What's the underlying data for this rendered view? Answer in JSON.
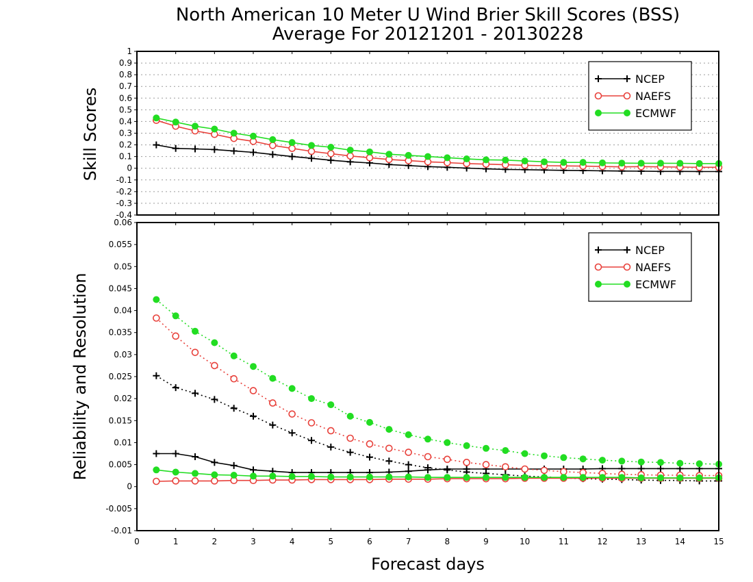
{
  "colors": {
    "NCEP": "#000000",
    "NAEFS": "#e8413b",
    "ECMWF": "#22dd22"
  },
  "chart_data": [
    {
      "type": "line",
      "title": "North American 10 Meter U Wind Brier Skill Scores (BSS)",
      "subtitle": "Average For 20121201 - 20130228",
      "xlabel": "",
      "ylabel": "Skill Scores",
      "xlim": [
        0,
        15
      ],
      "ylim": [
        -0.4,
        1
      ],
      "yticks": [
        "-0.4",
        "-0.3",
        "-0.2",
        "-0.1",
        "0",
        "0.1",
        "0.2",
        "0.3",
        "0.4",
        "0.5",
        "0.6",
        "0.7",
        "0.8",
        "0.9",
        "1"
      ],
      "grid": true,
      "legend": "top-right",
      "x": [
        0.5,
        1,
        1.5,
        2,
        2.5,
        3,
        3.5,
        4,
        4.5,
        5,
        5.5,
        6,
        6.5,
        7,
        7.5,
        8,
        8.5,
        9,
        9.5,
        10,
        10.5,
        11,
        11.5,
        12,
        12.5,
        13,
        13.5,
        14,
        14.5,
        15
      ],
      "series": [
        {
          "name": "NCEP",
          "marker": "plus",
          "values": [
            0.2,
            0.17,
            0.165,
            0.16,
            0.148,
            0.136,
            0.118,
            0.1,
            0.085,
            0.068,
            0.055,
            0.045,
            0.032,
            0.023,
            0.014,
            0.008,
            0.001,
            -0.005,
            -0.01,
            -0.012,
            -0.015,
            -0.018,
            -0.02,
            -0.022,
            -0.024,
            -0.025,
            -0.027,
            -0.027,
            -0.028,
            -0.028
          ]
        },
        {
          "name": "NAEFS",
          "marker": "open-circle",
          "values": [
            0.41,
            0.36,
            0.32,
            0.29,
            0.255,
            0.23,
            0.195,
            0.17,
            0.145,
            0.125,
            0.105,
            0.09,
            0.075,
            0.065,
            0.055,
            0.048,
            0.04,
            0.035,
            0.03,
            0.025,
            0.022,
            0.02,
            0.018,
            0.015,
            0.012,
            0.014,
            0.012,
            0.01,
            0.008,
            0.008
          ]
        },
        {
          "name": "ECMWF",
          "marker": "filled-circle",
          "values": [
            0.43,
            0.395,
            0.36,
            0.335,
            0.3,
            0.275,
            0.245,
            0.22,
            0.195,
            0.18,
            0.155,
            0.14,
            0.12,
            0.11,
            0.1,
            0.09,
            0.08,
            0.072,
            0.07,
            0.062,
            0.055,
            0.05,
            0.05,
            0.046,
            0.044,
            0.043,
            0.043,
            0.042,
            0.04,
            0.04
          ]
        }
      ]
    },
    {
      "type": "line",
      "title": "",
      "xlabel": "Forecast days",
      "ylabel": "Reliability and Resolution",
      "xlim": [
        0,
        15
      ],
      "ylim": [
        -0.01,
        0.06
      ],
      "xticks": [
        "0",
        "1",
        "2",
        "3",
        "4",
        "5",
        "6",
        "7",
        "8",
        "9",
        "10",
        "11",
        "12",
        "13",
        "14",
        "15"
      ],
      "yticks": [
        "-0.01",
        "-0.005",
        "0",
        "0.005",
        "0.01",
        "0.015",
        "0.02",
        "0.025",
        "0.03",
        "0.035",
        "0.04",
        "0.045",
        "0.05",
        "0.055",
        "0.06"
      ],
      "grid": false,
      "legend": "top-right",
      "x": [
        0.5,
        1,
        1.5,
        2,
        2.5,
        3,
        3.5,
        4,
        4.5,
        5,
        5.5,
        6,
        6.5,
        7,
        7.5,
        8,
        8.5,
        9,
        9.5,
        10,
        10.5,
        11,
        11.5,
        12,
        12.5,
        13,
        13.5,
        14,
        14.5,
        15
      ],
      "series": [
        {
          "name": "NCEP",
          "style": "solid",
          "marker": "plus",
          "values": [
            0.0075,
            0.0075,
            0.0068,
            0.0055,
            0.0048,
            0.0038,
            0.0035,
            0.0032,
            0.0032,
            0.0032,
            0.0032,
            0.0032,
            0.0033,
            0.0035,
            0.0038,
            0.004,
            0.004,
            0.004,
            0.004,
            0.004,
            0.004,
            0.004,
            0.004,
            0.0041,
            0.0041,
            0.0041,
            0.0041,
            0.0041,
            0.0041,
            0.0041
          ]
        },
        {
          "name": "NCEP",
          "style": "dotted",
          "marker": "plus",
          "values": [
            0.0252,
            0.0225,
            0.0212,
            0.0198,
            0.0178,
            0.016,
            0.014,
            0.0122,
            0.0105,
            0.009,
            0.0078,
            0.0067,
            0.0058,
            0.005,
            0.0043,
            0.0038,
            0.0033,
            0.003,
            0.0027,
            0.0024,
            0.0022,
            0.002,
            0.0018,
            0.0017,
            0.0016,
            0.0015,
            0.0014,
            0.0014,
            0.0013,
            0.0013
          ]
        },
        {
          "name": "NAEFS",
          "style": "solid",
          "marker": "open-circle",
          "values": [
            0.0012,
            0.0013,
            0.0013,
            0.0013,
            0.0014,
            0.0014,
            0.0015,
            0.0015,
            0.0016,
            0.0016,
            0.0016,
            0.0016,
            0.0017,
            0.0017,
            0.0017,
            0.0018,
            0.0018,
            0.0018,
            0.0018,
            0.0019,
            0.0019,
            0.0019,
            0.0019,
            0.0019,
            0.0019,
            0.0019,
            0.0019,
            0.0019,
            0.0019,
            0.0019
          ]
        },
        {
          "name": "NAEFS",
          "style": "dotted",
          "marker": "open-circle",
          "values": [
            0.0383,
            0.0342,
            0.0305,
            0.0275,
            0.0245,
            0.0218,
            0.019,
            0.0165,
            0.0145,
            0.0127,
            0.011,
            0.0097,
            0.0087,
            0.0078,
            0.0068,
            0.0062,
            0.0055,
            0.005,
            0.0045,
            0.004,
            0.0037,
            0.0034,
            0.0032,
            0.003,
            0.0028,
            0.0027,
            0.0026,
            0.0026,
            0.0025,
            0.0025
          ]
        },
        {
          "name": "ECMWF",
          "style": "solid",
          "marker": "filled-circle",
          "values": [
            0.0038,
            0.0033,
            0.003,
            0.0027,
            0.0026,
            0.0024,
            0.0024,
            0.0023,
            0.0023,
            0.0022,
            0.0022,
            0.0022,
            0.0022,
            0.0022,
            0.0021,
            0.0021,
            0.0021,
            0.0021,
            0.0021,
            0.0021,
            0.0021,
            0.0021,
            0.0021,
            0.0021,
            0.0021,
            0.002,
            0.002,
            0.002,
            0.002,
            0.002
          ]
        },
        {
          "name": "ECMWF",
          "style": "dotted",
          "marker": "filled-circle",
          "values": [
            0.0425,
            0.0388,
            0.0353,
            0.0327,
            0.0297,
            0.0273,
            0.0246,
            0.0223,
            0.02,
            0.0186,
            0.016,
            0.0146,
            0.013,
            0.0118,
            0.0108,
            0.01,
            0.0093,
            0.0087,
            0.0082,
            0.0075,
            0.007,
            0.0066,
            0.0063,
            0.006,
            0.0058,
            0.0056,
            0.0055,
            0.0053,
            0.0052,
            0.0051
          ]
        }
      ]
    }
  ]
}
